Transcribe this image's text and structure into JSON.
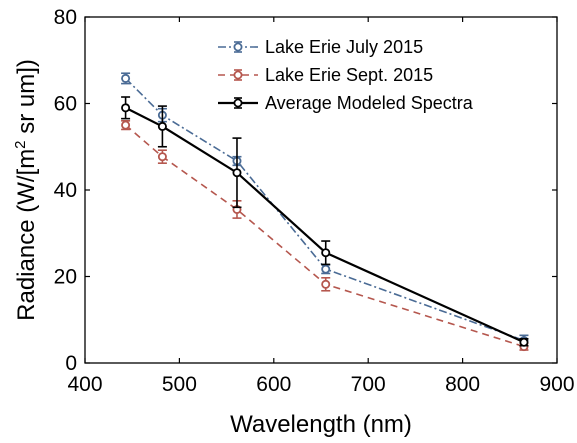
{
  "chart_data": {
    "type": "line",
    "xlabel": "Wavelength (nm)",
    "ylabel_main": "Radiance (W/[m",
    "ylabel_sup": "2",
    "ylabel_tail": " sr um])",
    "xlim": [
      400,
      900
    ],
    "ylim": [
      0,
      80
    ],
    "xticks": [
      400,
      500,
      600,
      700,
      800,
      900
    ],
    "yticks": [
      0,
      20,
      40,
      60,
      80
    ],
    "grid": false,
    "legend_position": "top-right",
    "series": [
      {
        "name": "Lake Erie July 2015",
        "color": "#4a6b95",
        "dash": "dash-dot",
        "marker": "circle",
        "x": [
          443,
          482,
          561,
          655,
          865
        ],
        "y": [
          65.8,
          57.3,
          46.7,
          21.7,
          5.2
        ],
        "err": [
          1.2,
          1.5,
          1.0,
          1.0,
          1.2
        ]
      },
      {
        "name": "Lake Erie Sept. 2015",
        "color": "#b5574e",
        "dash": "dashed",
        "marker": "circle",
        "x": [
          443,
          482,
          561,
          655,
          865
        ],
        "y": [
          55.0,
          47.7,
          35.5,
          18.2,
          3.8
        ],
        "err": [
          1.0,
          1.5,
          2.0,
          1.5,
          0.8
        ]
      },
      {
        "name": "Average Modeled Spectra",
        "color": "#000000",
        "dash": "solid",
        "marker": "circle",
        "x": [
          443,
          482,
          561,
          655,
          865
        ],
        "y": [
          59.0,
          54.7,
          44.0,
          25.5,
          4.8
        ],
        "err": [
          2.5,
          4.7,
          8.0,
          2.7,
          0.8
        ]
      }
    ]
  }
}
